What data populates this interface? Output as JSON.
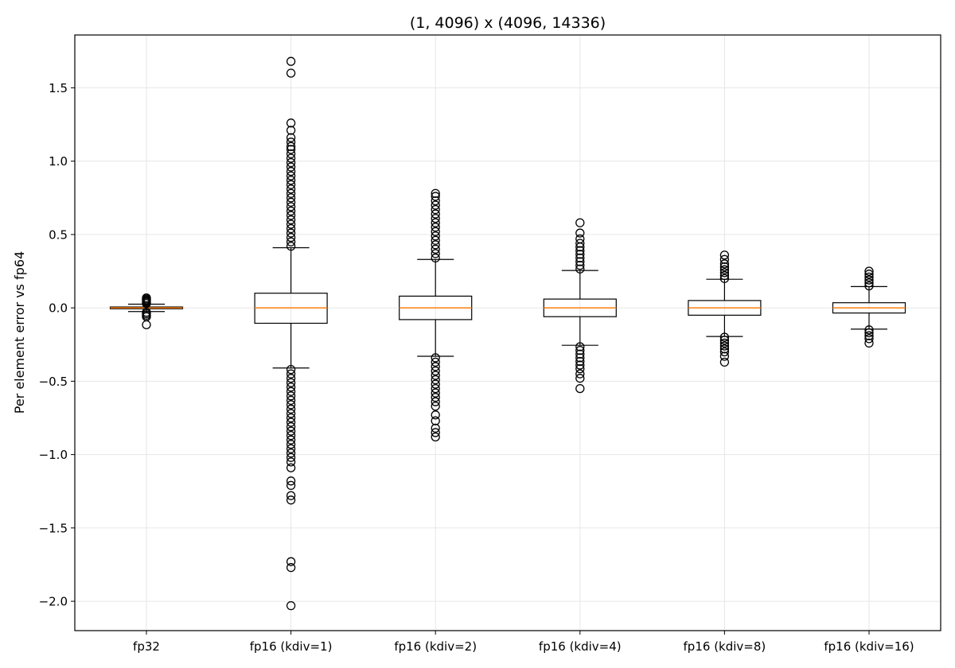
{
  "chart_data": {
    "type": "box",
    "title": "(1, 4096) x (4096, 14336)",
    "xlabel": "",
    "ylabel": "Per element error vs fp64",
    "ylim": [
      -2.2,
      1.86
    ],
    "yticks": [
      -2.0,
      -1.5,
      -1.0,
      -0.5,
      0.0,
      0.5,
      1.0,
      1.5
    ],
    "ytick_labels": [
      "−2.0",
      "−1.5",
      "−1.0",
      "−0.5",
      "0.0",
      "0.5",
      "1.0",
      "1.5"
    ],
    "grid": true,
    "colors": {
      "box": "#000000",
      "median": "#ff7f0e",
      "grid": "#e6e6e6"
    },
    "categories": [
      "fp32",
      "fp16 (kdiv=1)",
      "fp16 (kdiv=2)",
      "fp16 (kdiv=4)",
      "fp16 (kdiv=8)",
      "fp16 (kdiv=16)"
    ],
    "boxes": [
      {
        "q1": -0.006,
        "median": 0.0,
        "q3": 0.006,
        "whisker_low": -0.025,
        "whisker_high": 0.025,
        "outliers": [
          0.03,
          0.038,
          0.045,
          0.052,
          0.06,
          0.068,
          -0.03,
          -0.04,
          -0.05,
          -0.06,
          -0.115
        ]
      },
      {
        "q1": -0.105,
        "median": 0.0,
        "q3": 0.1,
        "whisker_low": -0.41,
        "whisker_high": 0.41,
        "outliers": [
          0.42,
          0.45,
          0.48,
          0.51,
          0.54,
          0.57,
          0.6,
          0.63,
          0.66,
          0.69,
          0.72,
          0.75,
          0.78,
          0.81,
          0.84,
          0.87,
          0.9,
          0.93,
          0.96,
          0.99,
          1.02,
          1.05,
          1.08,
          1.1,
          1.13,
          1.16,
          1.21,
          1.26,
          1.6,
          1.68,
          -0.42,
          -0.45,
          -0.48,
          -0.51,
          -0.54,
          -0.57,
          -0.6,
          -0.63,
          -0.66,
          -0.69,
          -0.72,
          -0.75,
          -0.78,
          -0.81,
          -0.84,
          -0.87,
          -0.9,
          -0.93,
          -0.96,
          -0.99,
          -1.02,
          -1.05,
          -1.09,
          -1.18,
          -1.21,
          -1.28,
          -1.31,
          -1.73,
          -1.77,
          -2.03
        ]
      },
      {
        "q1": -0.08,
        "median": 0.0,
        "q3": 0.08,
        "whisker_low": -0.33,
        "whisker_high": 0.33,
        "outliers": [
          0.34,
          0.37,
          0.4,
          0.43,
          0.46,
          0.49,
          0.52,
          0.55,
          0.58,
          0.61,
          0.64,
          0.67,
          0.7,
          0.73,
          0.76,
          0.78,
          -0.34,
          -0.37,
          -0.4,
          -0.43,
          -0.46,
          -0.49,
          -0.52,
          -0.55,
          -0.58,
          -0.61,
          -0.64,
          -0.67,
          -0.73,
          -0.77,
          -0.82,
          -0.85,
          -0.88
        ]
      },
      {
        "q1": -0.06,
        "median": 0.0,
        "q3": 0.06,
        "whisker_low": -0.255,
        "whisker_high": 0.255,
        "outliers": [
          0.265,
          0.29,
          0.315,
          0.34,
          0.365,
          0.39,
          0.415,
          0.44,
          0.47,
          0.51,
          0.58,
          -0.265,
          -0.29,
          -0.315,
          -0.34,
          -0.365,
          -0.39,
          -0.415,
          -0.45,
          -0.48,
          -0.55
        ]
      },
      {
        "q1": -0.05,
        "median": 0.0,
        "q3": 0.05,
        "whisker_low": -0.195,
        "whisker_high": 0.195,
        "outliers": [
          0.2,
          0.22,
          0.24,
          0.26,
          0.28,
          0.3,
          0.33,
          0.36,
          -0.2,
          -0.22,
          -0.24,
          -0.26,
          -0.28,
          -0.3,
          -0.33,
          -0.37
        ]
      },
      {
        "q1": -0.035,
        "median": 0.0,
        "q3": 0.035,
        "whisker_low": -0.145,
        "whisker_high": 0.145,
        "outliers": [
          0.15,
          0.17,
          0.19,
          0.21,
          0.23,
          0.25,
          -0.15,
          -0.17,
          -0.19,
          -0.21,
          -0.24
        ]
      }
    ]
  }
}
